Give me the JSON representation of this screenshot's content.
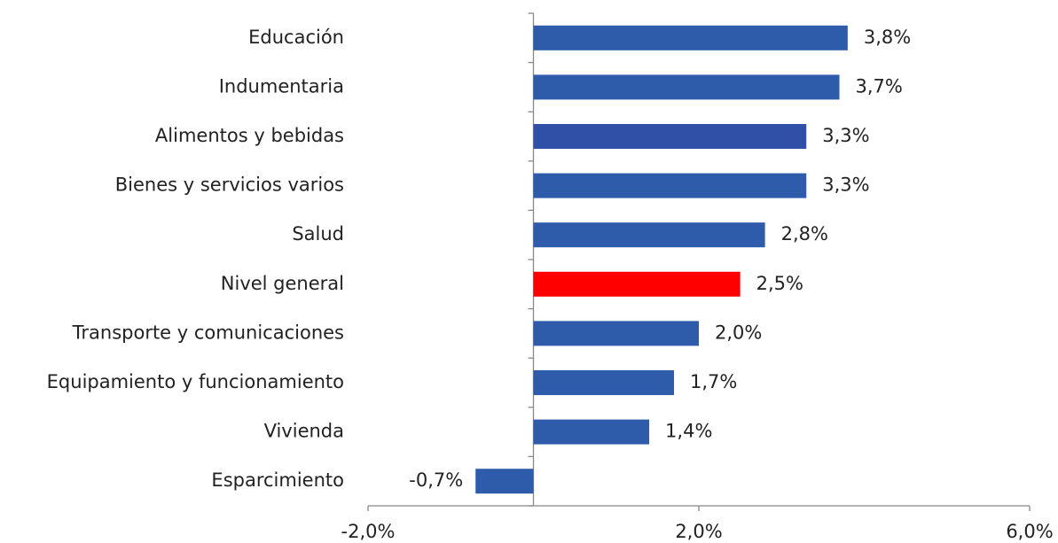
{
  "chart_data": {
    "type": "bar",
    "orientation": "horizontal",
    "categories": [
      "Educación",
      "Indumentaria",
      "Alimentos y bebidas",
      "Bienes y servicios varios",
      "Salud",
      "Nivel general",
      "Transporte y comunicaciones",
      "Equipamiento y funcionamiento",
      "Vivienda",
      "Esparcimiento"
    ],
    "values": [
      3.8,
      3.7,
      3.3,
      3.3,
      2.8,
      2.5,
      2.0,
      1.7,
      1.4,
      -0.7
    ],
    "value_labels": [
      "3,8%",
      "3,7%",
      "3,3%",
      "3,3%",
      "2,8%",
      "2,5%",
      "2,0%",
      "1,7%",
      "1,4%",
      "-0,7%"
    ],
    "colors": [
      "#2e5caa",
      "#2e5caa",
      "#2f50a6",
      "#2e5caa",
      "#2e5caa",
      "#ff0000",
      "#2e5caa",
      "#2e5caa",
      "#2e5caa",
      "#2e5caa"
    ],
    "xlim": [
      -2,
      6
    ],
    "xticks": [
      {
        "value": -2,
        "label": "-2,0%"
      },
      {
        "value": 2,
        "label": "2,0%"
      },
      {
        "value": 6,
        "label": "6,0%"
      }
    ],
    "grid": false
  }
}
